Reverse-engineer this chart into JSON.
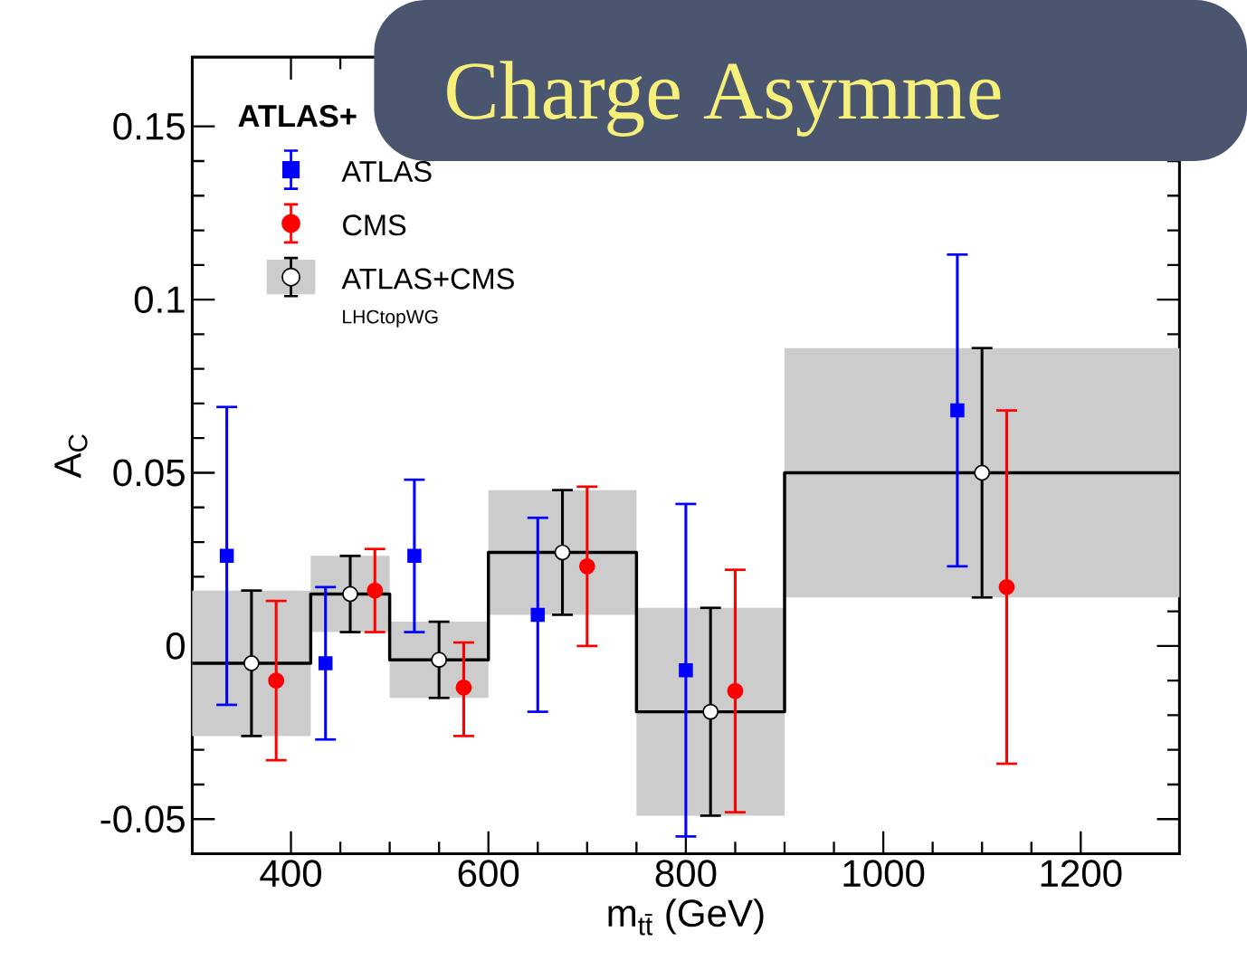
{
  "chart_data": {
    "type": "scatter",
    "title": "Charge Asymme",
    "xlabel": "m$_{tt̄}$ (GeV)",
    "ylabel": "A$_{C}$",
    "xlim": [
      300,
      1300
    ],
    "ylim": [
      -0.06,
      0.17
    ],
    "xticks": [
      400,
      600,
      800,
      1000,
      1200
    ],
    "yticks": [
      {
        "value": -0.05,
        "label": "-0.05"
      },
      0,
      0.05,
      {
        "value": 0.1,
        "label": "0.1"
      },
      0.15
    ],
    "legend": "top left",
    "grid": false,
    "annotations": [
      "ATLAS+",
      "LHCtopWG"
    ],
    "series": [
      {
        "type": "step",
        "color": "#000000",
        "x": [
          300,
          420,
          500,
          600,
          750,
          900,
          1300
        ],
        "values": [
          -0.005,
          0.015,
          -0.004,
          0.027,
          -0.019,
          0.05,
          0.05
        ],
        "lower": [
          -0.026,
          0.004,
          -0.015,
          0.009,
          -0.049,
          0.014,
          0.014
        ],
        "upper": [
          0.016,
          0.026,
          0.007,
          0.045,
          0.011,
          0.086,
          0.086
        ]
      },
      {
        "name": "ATLAS",
        "color": "#0000ff",
        "marker": "square",
        "x": [
          335,
          435,
          525,
          650,
          800,
          1075
        ],
        "values": [
          0.026,
          -0.005,
          0.026,
          0.009,
          -0.007,
          0.068
        ],
        "errors": [
          [
            -0.017,
            0.069
          ],
          [
            -0.027,
            0.017
          ],
          [
            0.004,
            0.048
          ],
          [
            -0.019,
            0.037
          ],
          [
            -0.055,
            0.041
          ],
          [
            0.023,
            0.113
          ]
        ]
      },
      {
        "name": "CMS",
        "color": "#ff0000",
        "marker": "circle",
        "x": [
          385,
          485,
          575,
          700,
          850,
          1125
        ],
        "values": [
          -0.01,
          0.016,
          -0.012,
          0.023,
          -0.013,
          0.017
        ],
        "errors": [
          [
            -0.033,
            0.013
          ],
          [
            0.004,
            0.028
          ],
          [
            -0.026,
            0.001
          ],
          [
            0.0,
            0.046
          ],
          [
            -0.048,
            0.022
          ],
          [
            -0.034,
            0.068
          ]
        ]
      },
      {
        "name": "ATLAS+CMS",
        "color": "#000000",
        "marker": "circle",
        "x": [
          360,
          460,
          550,
          675,
          825,
          1100
        ],
        "values": [
          -0.005,
          0.015,
          -0.004,
          0.027,
          -0.019,
          0.05
        ],
        "errors": [
          [
            -0.026,
            0.016
          ],
          [
            0.004,
            0.026
          ],
          [
            -0.015,
            0.007
          ],
          [
            0.009,
            0.045
          ],
          [
            -0.049,
            0.011
          ],
          [
            0.014,
            0.086
          ]
        ]
      }
    ]
  }
}
